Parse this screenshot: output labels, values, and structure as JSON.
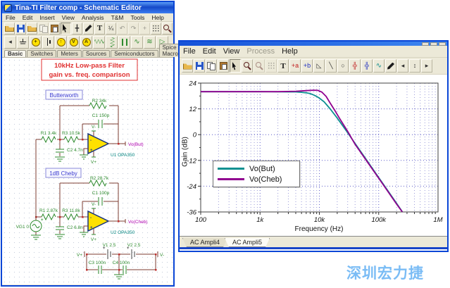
{
  "watermark": {
    "text": "深圳宏力捷"
  },
  "schematic_window": {
    "title": "Tina-TI Filter comp - Schematic Editor",
    "menu": [
      {
        "label": "File",
        "n": "menu-file"
      },
      {
        "label": "Edit",
        "n": "menu-edit"
      },
      {
        "label": "Insert",
        "n": "menu-insert"
      },
      {
        "label": "View",
        "n": "menu-view"
      },
      {
        "label": "Analysis",
        "n": "menu-analysis"
      },
      {
        "label": "T&M",
        "n": "menu-tm"
      },
      {
        "label": "Tools",
        "n": "menu-tools"
      },
      {
        "label": "Help",
        "n": "menu-help"
      }
    ],
    "toolbar_main": [
      {
        "n": "open-button",
        "i": "open-icon",
        "cls": "ic-open"
      },
      {
        "n": "save-button",
        "i": "save-icon",
        "cls": "ic-save"
      },
      {
        "n": "export-button",
        "i": "export-folder-icon",
        "cls": "ic-open"
      },
      {
        "n": "copy-button",
        "i": "copy-icon",
        "cls": "ic-copy",
        "bcls": "dis"
      },
      {
        "n": "paste-button",
        "i": "paste-icon",
        "cls": "ic-paste"
      },
      {
        "n": "select-button",
        "i": "select-arrow-icon",
        "cls": "ic-arrow",
        "bcls": "pressed"
      },
      {
        "n": "probe-button",
        "i": "probe-icon",
        "g": "╋",
        "cls": "gsm"
      },
      {
        "n": "wire-button",
        "i": "pen-icon",
        "cls": "ic-pen"
      },
      {
        "n": "text-button",
        "i": "text-icon",
        "g": "T",
        "cls": "gT"
      },
      {
        "n": "formula-button",
        "i": "formula-icon",
        "g": "¼",
        "cls": "gsm"
      },
      {
        "n": "undo-button",
        "i": "undo-icon",
        "g": "↶",
        "cls": "gsm",
        "bcls": "dis"
      },
      {
        "n": "redo-button",
        "i": "redo-icon",
        "g": "↷",
        "cls": "gsm",
        "bcls": "dis"
      },
      {
        "n": "move-button",
        "i": "crosshair-icon",
        "g": "+",
        "cls": "gsm",
        "bcls": "dis"
      },
      {
        "n": "grid-button",
        "i": "grid-icon",
        "cls": "ic-grid"
      },
      {
        "n": "zoom-button",
        "i": "magnifier-icon",
        "cls": "ic-mag"
      }
    ],
    "toolbar_components": [
      {
        "n": "scroll-left-button",
        "i": "scroll-left-icon",
        "g": "◂",
        "cls": "gsm"
      },
      {
        "n": "ground-button",
        "i": "ground-icon",
        "cls": "ic-gnd"
      },
      {
        "n": "voltage-source-button",
        "i": "voltage-source-icon",
        "g": "+",
        "cls": "ic-src"
      },
      {
        "n": "battery-button",
        "i": "battery-icon",
        "cls": "ic-batt"
      },
      {
        "n": "current-source-button",
        "i": "current-source-icon",
        "g": "↑",
        "cls": "ic-src"
      },
      {
        "n": "voltmeter-button",
        "i": "voltmeter-icon",
        "g": "V",
        "cls": "ic-src"
      },
      {
        "n": "ammeter-button",
        "i": "ammeter-icon",
        "g": "A",
        "cls": "ic-src"
      },
      {
        "n": "resistor-button",
        "i": "resistor-icon",
        "cls": "ic-res"
      },
      {
        "n": "potentiometer-button",
        "i": "potentiometer-icon",
        "cls": "ic-pot"
      },
      {
        "n": "capacitor-button",
        "i": "capacitor-icon",
        "cls": "ic-cap"
      },
      {
        "n": "inductor-button",
        "i": "inductor-icon",
        "g": "∿",
        "cls": "gGreen"
      },
      {
        "n": "transformer-button",
        "i": "transformer-icon",
        "g": "≋",
        "cls": "gGreen"
      },
      {
        "n": "opamp-button",
        "i": "opamp-icon",
        "g": "▷",
        "cls": "gGreen"
      }
    ],
    "component_tabs": [
      {
        "label": "Basic",
        "n": "tab-basic",
        "cls": "active"
      },
      {
        "label": "Switches",
        "n": "tab-switches"
      },
      {
        "label": "Meters",
        "n": "tab-meters"
      },
      {
        "label": "Sources",
        "n": "tab-sources"
      },
      {
        "label": "Semiconductors",
        "n": "tab-semiconductors"
      },
      {
        "label": "Spice Macros",
        "n": "tab-spice-macros"
      }
    ],
    "annotations": {
      "title_line1": "10kHz Low-pass Filter",
      "title_line2": "gain vs. freq. comparison",
      "butterworth_label": "Butterworth",
      "cheby_label": "1dB Cheby"
    },
    "butterworth": {
      "r1": "R1 3.4k",
      "r2": "R2 34k",
      "r3": "R3 10.5k",
      "c1": "C1 150p",
      "c2": "C2 4.7n",
      "opamp": "U1 OPA350",
      "output": "Vo(But)",
      "vminus": "V-",
      "vplus": "V+"
    },
    "cheby": {
      "r1": "R1 2.87k",
      "r2": "R2 28.7k",
      "r3": "R3 11.8k",
      "c1": "C1 100p",
      "c2": "C2 6.8n",
      "opamp": "U2 OPA350",
      "output": "Vo(Cheb)",
      "vminus": "V-",
      "vplus": "V+"
    },
    "source_label": "VG1 0",
    "power": {
      "v1": "V1 2.5",
      "v2": "V2 2.5",
      "c3": "C3 100n",
      "c4": "C4 100n",
      "vplus": "V+",
      "vminus": "V-"
    }
  },
  "diagram_window": {
    "menu": [
      {
        "label": "File",
        "n": "menu-file"
      },
      {
        "label": "Edit",
        "n": "menu-edit"
      },
      {
        "label": "View",
        "n": "menu-view"
      },
      {
        "label": "Process",
        "n": "menu-process",
        "cls": "dis"
      },
      {
        "label": "Help",
        "n": "menu-help"
      }
    ],
    "toolbar": [
      {
        "n": "open-button",
        "i": "open-icon",
        "cls": "ic-open"
      },
      {
        "n": "save-button",
        "i": "save-icon",
        "cls": "ic-save"
      },
      {
        "n": "copy-button",
        "i": "copy-icon",
        "cls": "ic-copy"
      },
      {
        "n": "paste-button",
        "i": "paste-icon",
        "cls": "ic-paste"
      },
      {
        "n": "select-button",
        "i": "select-arrow-icon",
        "cls": "ic-arrow",
        "bcls": "pressed"
      },
      {
        "n": "zoom-in-button",
        "i": "zoom-in-icon",
        "cls": "ic-mag"
      },
      {
        "n": "zoom-out-button",
        "i": "zoom-out-icon",
        "cls": "ic-mag",
        "bcls": "dis"
      },
      {
        "n": "grid-button",
        "i": "grid-icon",
        "cls": "ic-grid",
        "bcls": "dis"
      },
      {
        "n": "text-button",
        "i": "text-icon",
        "g": "T",
        "cls": "gT"
      },
      {
        "n": "cursor-a-button",
        "i": "cursor-a-icon",
        "g": "+a",
        "cls": "cRed"
      },
      {
        "n": "cursor-b-button",
        "i": "cursor-b-icon",
        "g": "+b",
        "cls": "cBlue"
      },
      {
        "n": "ruler-button",
        "i": "ruler-icon",
        "g": "◺",
        "cls": "gsm"
      },
      {
        "n": "line-button",
        "i": "line-icon",
        "g": "╲",
        "cls": "gsm"
      },
      {
        "n": "ellipse-button",
        "i": "ellipse-icon",
        "g": "○",
        "cls": "gsm"
      },
      {
        "n": "cross-a-button",
        "i": "crosshair-a-icon",
        "g": "╬",
        "cls": "cRed"
      },
      {
        "n": "cross-b-button",
        "i": "crosshair-b-icon",
        "g": "╬",
        "cls": "cBlue"
      },
      {
        "n": "add-curve-button",
        "i": "add-curve-icon",
        "g": "∿",
        "cls": "cTeal"
      },
      {
        "n": "marker-button",
        "i": "marker-pen-icon",
        "cls": "ic-pen"
      },
      {
        "n": "nav-left-button",
        "i": "nav-left-icon",
        "g": "◂",
        "cls": "gsm"
      },
      {
        "n": "nav-spin-button",
        "i": "nav-spinner-icon",
        "g": "↕",
        "cls": "gsm"
      },
      {
        "n": "nav-right-button",
        "i": "nav-right-icon",
        "g": "▸",
        "cls": "gsm"
      }
    ],
    "tabs": [
      {
        "label": "AC Ampli4",
        "n": "tab-ac-ampli4"
      },
      {
        "label": "AC Ampli5",
        "n": "tab-ac-ampli5",
        "cls": "active"
      }
    ]
  },
  "chart_data": {
    "type": "line",
    "title": "",
    "xlabel": "Frequency (Hz)",
    "ylabel": "Gain (dB)",
    "x_scale": "log",
    "xlim": [
      100,
      1000000
    ],
    "ylim": [
      -36,
      24
    ],
    "y_ticks": [
      24,
      12,
      0,
      -12,
      -24,
      -36
    ],
    "x_tick_labels": [
      "100",
      "1k",
      "10k",
      "100k",
      "1M"
    ],
    "grid": true,
    "legend_position": "lower-left",
    "series": [
      {
        "name": "Vo(But)",
        "color": "#0E9191",
        "points": [
          [
            100,
            20
          ],
          [
            300,
            20
          ],
          [
            1000,
            20
          ],
          [
            2000,
            19.97
          ],
          [
            3000,
            19.9
          ],
          [
            4000,
            19.89
          ],
          [
            5000,
            19.7
          ],
          [
            6000,
            19.47
          ],
          [
            7000,
            19.1
          ],
          [
            8000,
            18.5
          ],
          [
            9000,
            17.8
          ],
          [
            10000,
            17.0
          ],
          [
            12000,
            15.3
          ],
          [
            15000,
            12.2
          ],
          [
            20000,
            7.7
          ],
          [
            30000,
            0.9
          ],
          [
            40000,
            -4.1
          ],
          [
            60000,
            -11.1
          ],
          [
            100000,
            -20
          ],
          [
            150000,
            -27
          ],
          [
            200000,
            -32
          ],
          [
            250000,
            -35.9
          ]
        ]
      },
      {
        "name": "Vo(Cheb)",
        "color": "#90008F",
        "points": [
          [
            100,
            20
          ],
          [
            1000,
            20
          ],
          [
            2000,
            20.0
          ],
          [
            4000,
            20.2
          ],
          [
            6000,
            20.5
          ],
          [
            8000,
            20.7
          ],
          [
            9500,
            20.6
          ],
          [
            11000,
            19.8
          ],
          [
            13000,
            17.8
          ],
          [
            15000,
            15.0
          ],
          [
            18000,
            11.5
          ],
          [
            22000,
            7.5
          ],
          [
            30000,
            1.5
          ],
          [
            40000,
            -4.5
          ],
          [
            60000,
            -11.5
          ],
          [
            100000,
            -20.3
          ],
          [
            150000,
            -27.3
          ],
          [
            200000,
            -32.3
          ],
          [
            250000,
            -36
          ]
        ]
      }
    ]
  }
}
